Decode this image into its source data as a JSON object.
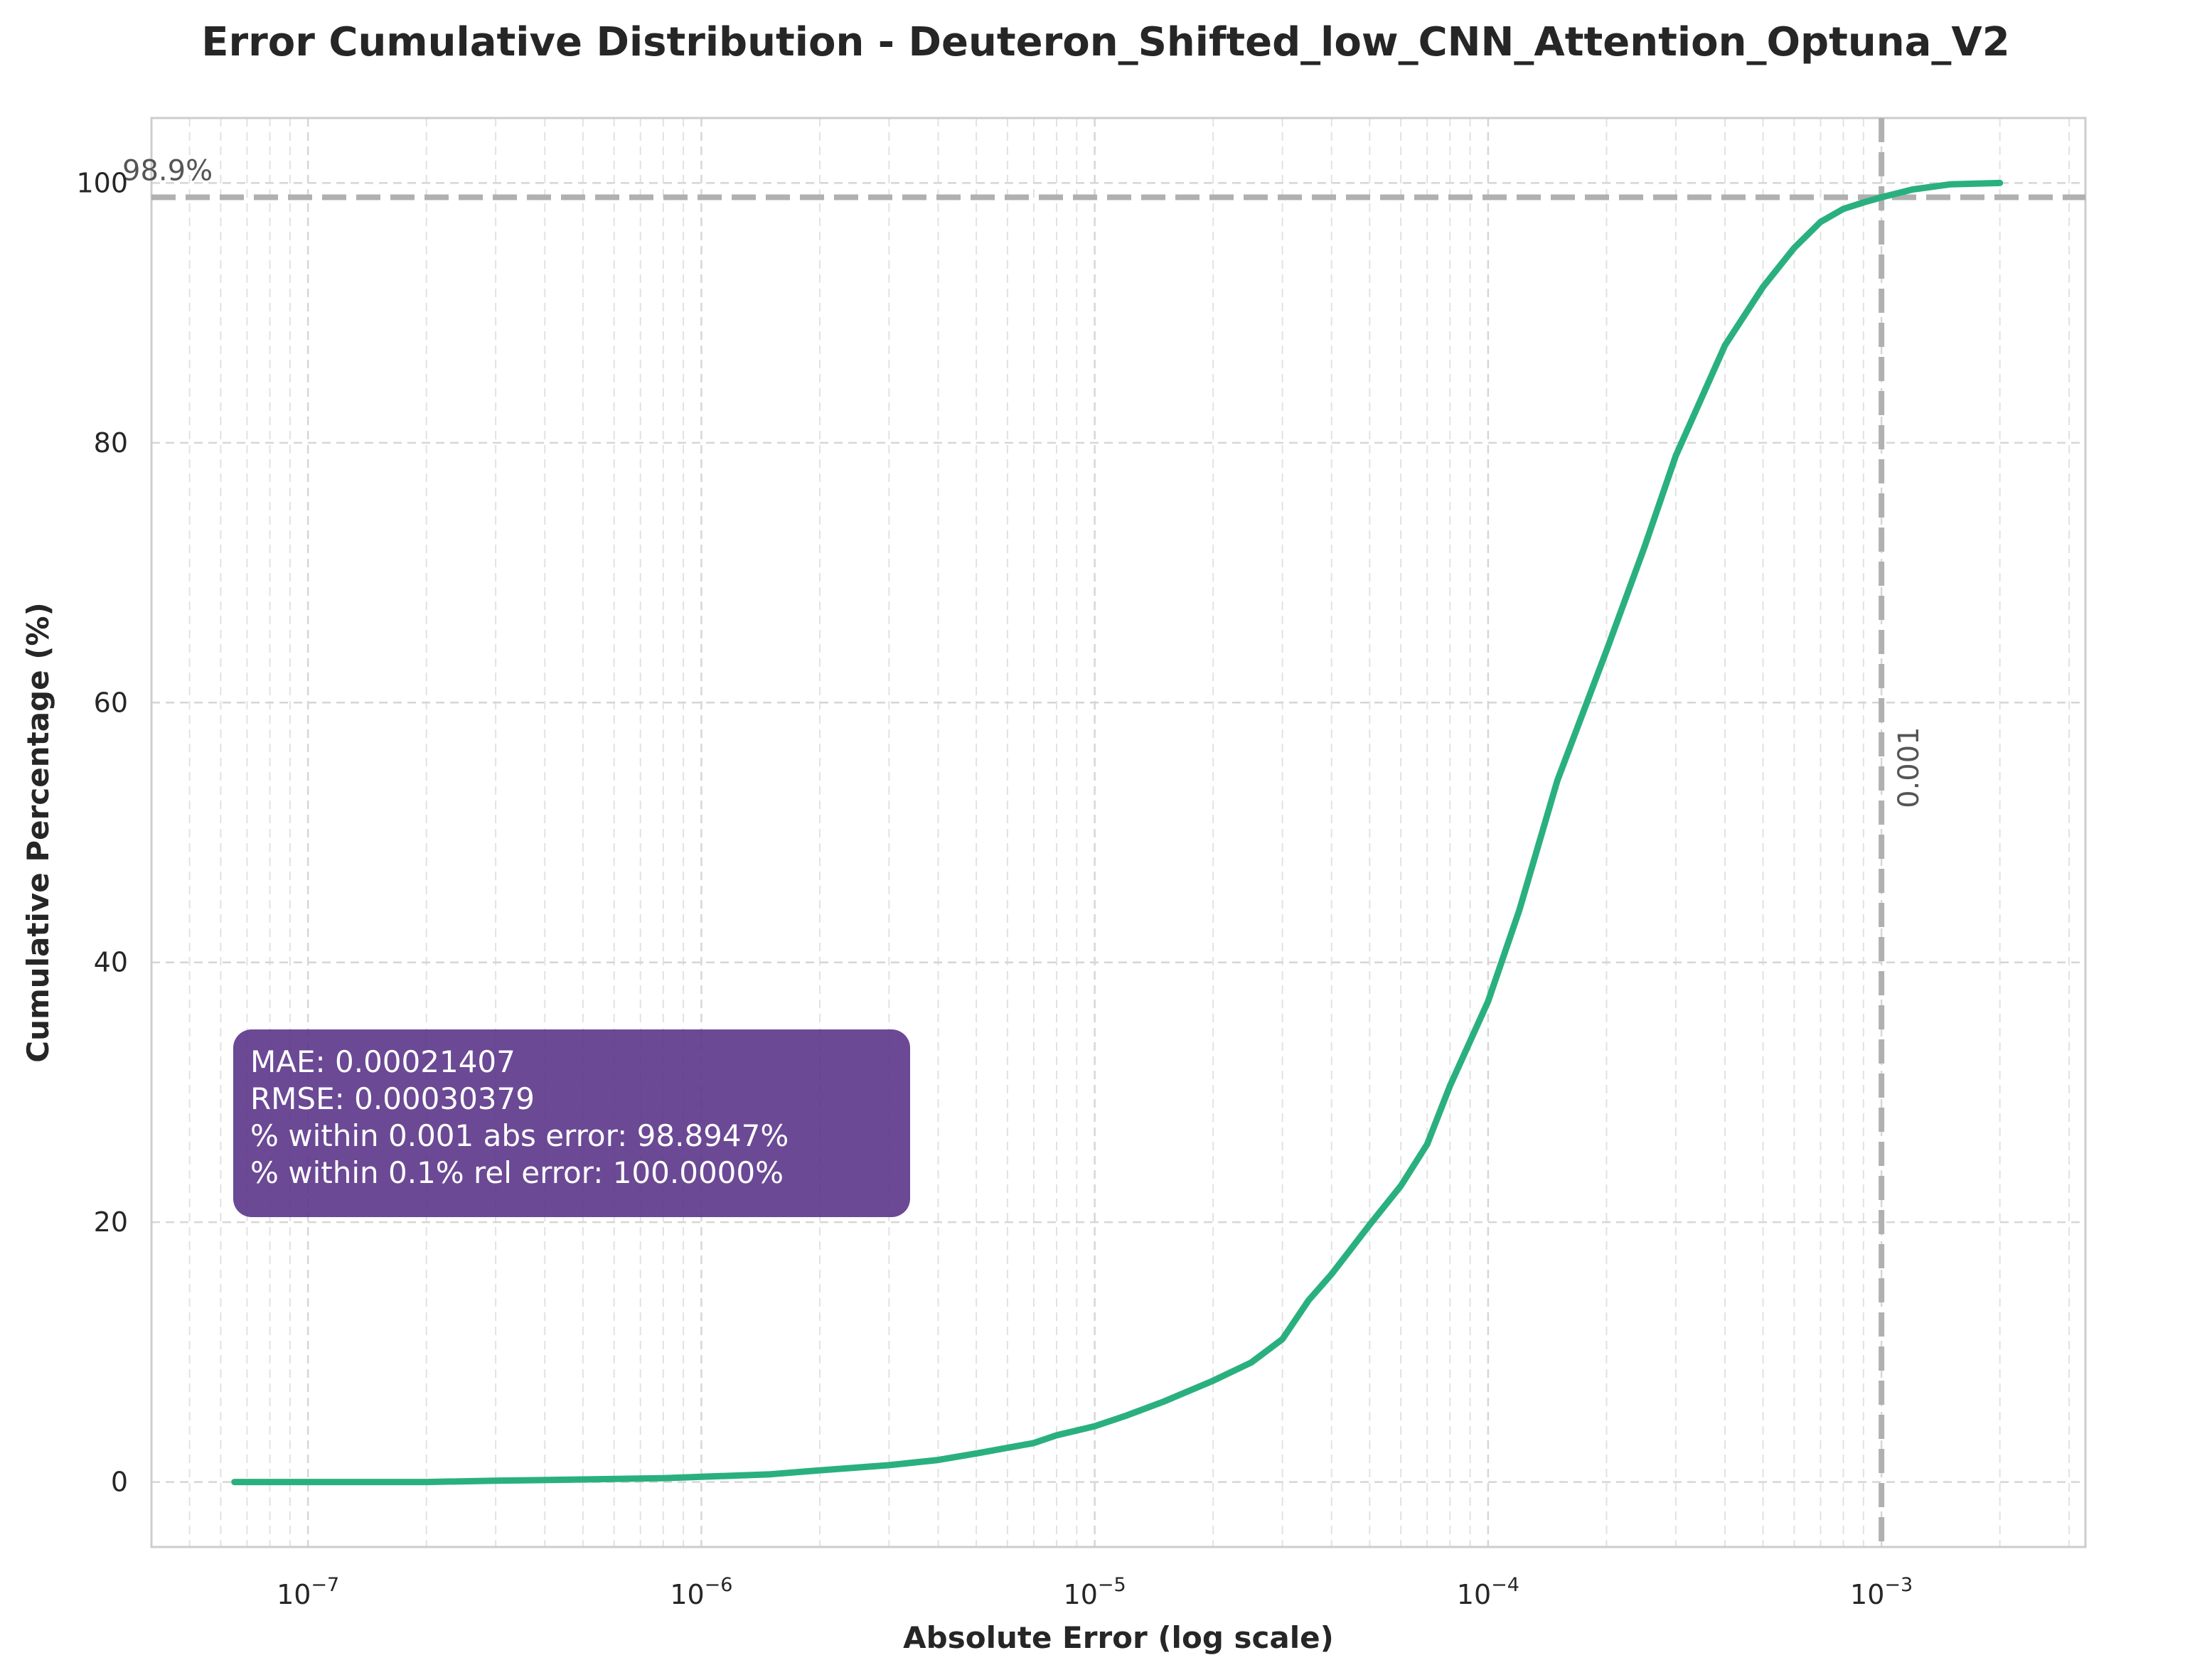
{
  "chart_data": {
    "type": "line",
    "title": "Error Cumulative Distribution - Deuteron_Shifted_low_CNN_Attention_Optuna_V2",
    "xlabel": "Absolute Error (log scale)",
    "ylabel": "Cumulative Percentage (%)",
    "x_scale": "log",
    "xlim": [
      4e-08,
      0.0033
    ],
    "ylim": [
      -5,
      105
    ],
    "x_ticks": [
      {
        "value": 1e-07,
        "base": "10",
        "exp": "−7"
      },
      {
        "value": 1e-06,
        "base": "10",
        "exp": "−6"
      },
      {
        "value": 1e-05,
        "base": "10",
        "exp": "−5"
      },
      {
        "value": 0.0001,
        "base": "10",
        "exp": "−4"
      },
      {
        "value": 0.001,
        "base": "10",
        "exp": "−3"
      }
    ],
    "y_ticks": [
      0,
      20,
      40,
      60,
      80,
      100
    ],
    "grid": true,
    "line_color": "#2ab07f",
    "series": [
      {
        "x": [
          6.5e-08,
          1e-07,
          2e-07,
          3e-07,
          5e-07,
          8e-07,
          1e-06,
          1.5e-06,
          2e-06,
          3e-06,
          4e-06,
          5e-06,
          7e-06,
          8e-06,
          1e-05,
          1.2e-05,
          1.5e-05,
          2e-05,
          2.5e-05,
          3e-05,
          3.5e-05,
          4e-05,
          5e-05,
          6e-05,
          7e-05,
          8e-05,
          0.0001,
          0.00012,
          0.00015,
          0.0002,
          0.00025,
          0.0003,
          0.0004,
          0.0005,
          0.0006,
          0.0007,
          0.0008,
          0.0009,
          0.001,
          0.0012,
          0.0015,
          0.002
        ],
        "y": [
          0,
          0,
          0,
          0.1,
          0.2,
          0.3,
          0.4,
          0.6,
          0.9,
          1.3,
          1.7,
          2.2,
          3.0,
          3.6,
          4.3,
          5.1,
          6.2,
          7.8,
          9.2,
          11.0,
          14.0,
          16.0,
          19.8,
          22.8,
          26.0,
          30.5,
          37.0,
          44.0,
          54.0,
          64.0,
          72.0,
          79.0,
          87.5,
          92.0,
          95.0,
          97.0,
          98.0,
          98.5,
          98.9,
          99.5,
          99.9,
          100.0
        ]
      }
    ],
    "reference_lines": {
      "horizontal": {
        "value": 98.9,
        "label": "98.9%"
      },
      "vertical": {
        "value": 0.001,
        "label": "0.001"
      }
    },
    "stats_box": {
      "color": "#5b3589",
      "lines": [
        "MAE: 0.00021407",
        "RMSE: 0.00030379",
        "% within 0.001 abs error: 98.8947%",
        "% within 0.1% rel error: 100.0000%"
      ]
    }
  }
}
